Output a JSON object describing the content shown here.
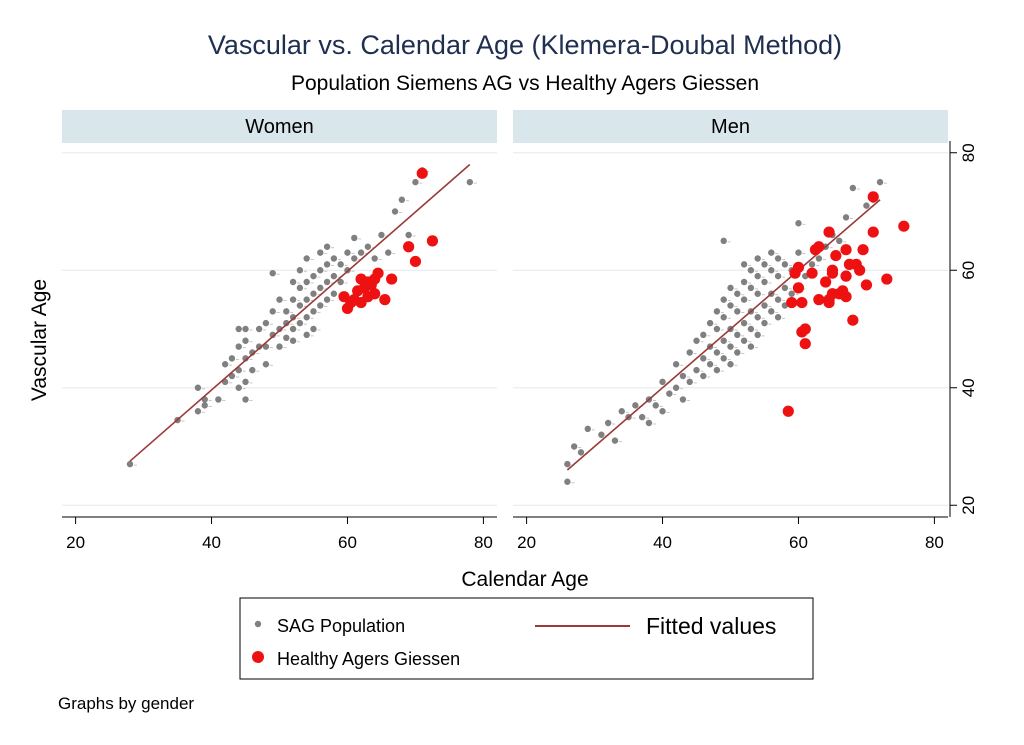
{
  "title": "Vascular vs. Calendar Age (Klemera-Doubal Method)",
  "subtitle": "Population Siemens AG vs Healthy Agers Giessen",
  "note": "Graphs by gender",
  "colors": {
    "title": "#1f2f4f",
    "strip_background": "#d9e6ec",
    "sag_points": "#808080",
    "hag_points": "#ee1111",
    "fit_line": "#9a3a38",
    "grid": "#e2eaee"
  },
  "chart_data": {
    "type": "scatter",
    "xlabel": "Calendar Age",
    "ylabel": "Vascular Age",
    "xlim": [
      18,
      82
    ],
    "ylim": [
      18,
      82
    ],
    "x_ticks": [
      20,
      40,
      60,
      80
    ],
    "y_ticks": [
      20,
      40,
      60,
      80
    ],
    "grid": true,
    "legend_position": "bottom",
    "legend": [
      {
        "label": "SAG Population",
        "kind": "sag"
      },
      {
        "label": "Fitted values",
        "kind": "fit"
      },
      {
        "label": "Healthy Agers Giessen",
        "kind": "hag"
      }
    ],
    "panels": [
      {
        "label": "Women",
        "fit_line": [
          [
            28,
            27.5
          ],
          [
            78,
            78
          ]
        ],
        "series": [
          {
            "name": "SAG Population",
            "points": [
              [
                28,
                27
              ],
              [
                35,
                34.5
              ],
              [
                38,
                36
              ],
              [
                38,
                40
              ],
              [
                39,
                37
              ],
              [
                39,
                38
              ],
              [
                41,
                38
              ],
              [
                42,
                41
              ],
              [
                42,
                44
              ],
              [
                43,
                42
              ],
              [
                43,
                45
              ],
              [
                44,
                40
              ],
              [
                44,
                43
              ],
              [
                44,
                47
              ],
              [
                44,
                50
              ],
              [
                45,
                38
              ],
              [
                45,
                41
              ],
              [
                45,
                45
              ],
              [
                45,
                48
              ],
              [
                45,
                50
              ],
              [
                46,
                43
              ],
              [
                46,
                46
              ],
              [
                47,
                47
              ],
              [
                47,
                50
              ],
              [
                48,
                44
              ],
              [
                48,
                47
              ],
              [
                48,
                51
              ],
              [
                49,
                59.5
              ],
              [
                49,
                53
              ],
              [
                49,
                49
              ],
              [
                50,
                47
              ],
              [
                50,
                50
              ],
              [
                50,
                55
              ],
              [
                51,
                48.5
              ],
              [
                51,
                51
              ],
              [
                51,
                53
              ],
              [
                52,
                48
              ],
              [
                52,
                50
              ],
              [
                52,
                52
              ],
              [
                52,
                55
              ],
              [
                52,
                58
              ],
              [
                53,
                51
              ],
              [
                53,
                54
              ],
              [
                53,
                57
              ],
              [
                53,
                60
              ],
              [
                54,
                49
              ],
              [
                54,
                52
              ],
              [
                54,
                55
              ],
              [
                54,
                58
              ],
              [
                54,
                62
              ],
              [
                55,
                50
              ],
              [
                55,
                53
              ],
              [
                55,
                56
              ],
              [
                55,
                59
              ],
              [
                56,
                54
              ],
              [
                56,
                57
              ],
              [
                56,
                60
              ],
              [
                56,
                63
              ],
              [
                57,
                55
              ],
              [
                57,
                58
              ],
              [
                57,
                61
              ],
              [
                57,
                64
              ],
              [
                58,
                56
              ],
              [
                58,
                59
              ],
              [
                58,
                62
              ],
              [
                59,
                58
              ],
              [
                59,
                61
              ],
              [
                60,
                60
              ],
              [
                60,
                63
              ],
              [
                61,
                62
              ],
              [
                61,
                65.5
              ],
              [
                62,
                63
              ],
              [
                63,
                64
              ],
              [
                64,
                62
              ],
              [
                65,
                66
              ],
              [
                66,
                63
              ],
              [
                67,
                70
              ],
              [
                68,
                72
              ],
              [
                69,
                66
              ],
              [
                70,
                75
              ],
              [
                71,
                77
              ],
              [
                78,
                75
              ]
            ]
          },
          {
            "name": "Healthy Agers Giessen",
            "points": [
              [
                59.5,
                55.5
              ],
              [
                60,
                53.5
              ],
              [
                60.5,
                54.5
              ],
              [
                61,
                55
              ],
              [
                61.5,
                56.5
              ],
              [
                62,
                54.5
              ],
              [
                62,
                58.5
              ],
              [
                62.5,
                57
              ],
              [
                63,
                55.5
              ],
              [
                63,
                58
              ],
              [
                63.5,
                57.5
              ],
              [
                64,
                56
              ],
              [
                64,
                58.5
              ],
              [
                64.5,
                59.5
              ],
              [
                65.5,
                55
              ],
              [
                66.5,
                58.5
              ],
              [
                69,
                64
              ],
              [
                70,
                61.5
              ],
              [
                71,
                76.5
              ],
              [
                72.5,
                65
              ]
            ]
          }
        ]
      },
      {
        "label": "Men",
        "fit_line": [
          [
            26,
            26
          ],
          [
            72,
            72
          ]
        ],
        "series": [
          {
            "name": "SAG Population",
            "points": [
              [
                26,
                24
              ],
              [
                26,
                27
              ],
              [
                27,
                30
              ],
              [
                28,
                29
              ],
              [
                29,
                33
              ],
              [
                31,
                32
              ],
              [
                32,
                34
              ],
              [
                33,
                31
              ],
              [
                34,
                36
              ],
              [
                35,
                35
              ],
              [
                36,
                37
              ],
              [
                37,
                35
              ],
              [
                38,
                34
              ],
              [
                38,
                38
              ],
              [
                39,
                37
              ],
              [
                40,
                36
              ],
              [
                40,
                41
              ],
              [
                41,
                39
              ],
              [
                42,
                40
              ],
              [
                42,
                44
              ],
              [
                43,
                38
              ],
              [
                43,
                42
              ],
              [
                44,
                41
              ],
              [
                44,
                46
              ],
              [
                45,
                43
              ],
              [
                45,
                48
              ],
              [
                46,
                42
              ],
              [
                46,
                45
              ],
              [
                46,
                49
              ],
              [
                47,
                44
              ],
              [
                47,
                47
              ],
              [
                47,
                51
              ],
              [
                48,
                43
              ],
              [
                48,
                46
              ],
              [
                48,
                50
              ],
              [
                48,
                53
              ],
              [
                49,
                45
              ],
              [
                49,
                48
              ],
              [
                49,
                52
              ],
              [
                49,
                55
              ],
              [
                49,
                65
              ],
              [
                50,
                44
              ],
              [
                50,
                47
              ],
              [
                50,
                50
              ],
              [
                50,
                54
              ],
              [
                50,
                57
              ],
              [
                51,
                46
              ],
              [
                51,
                49
              ],
              [
                51,
                53
              ],
              [
                51,
                56
              ],
              [
                52,
                48
              ],
              [
                52,
                51
              ],
              [
                52,
                55
              ],
              [
                52,
                58
              ],
              [
                52,
                61
              ],
              [
                53,
                47
              ],
              [
                53,
                50
              ],
              [
                53,
                53
              ],
              [
                53,
                57
              ],
              [
                53,
                60
              ],
              [
                54,
                49
              ],
              [
                54,
                52
              ],
              [
                54,
                56
              ],
              [
                54,
                59
              ],
              [
                54,
                62
              ],
              [
                55,
                51
              ],
              [
                55,
                54
              ],
              [
                55,
                58
              ],
              [
                55,
                61
              ],
              [
                56,
                53
              ],
              [
                56,
                56
              ],
              [
                56,
                60
              ],
              [
                56,
                63
              ],
              [
                57,
                52
              ],
              [
                57,
                55
              ],
              [
                57,
                59
              ],
              [
                57,
                62
              ],
              [
                58,
                54
              ],
              [
                58,
                57
              ],
              [
                58,
                61
              ],
              [
                59,
                56
              ],
              [
                59,
                60
              ],
              [
                60,
                57
              ],
              [
                60,
                63
              ],
              [
                60,
                68
              ],
              [
                61,
                59
              ],
              [
                62,
                61
              ],
              [
                63,
                62
              ],
              [
                64,
                64
              ],
              [
                65,
                66
              ],
              [
                66,
                65
              ],
              [
                67,
                69
              ],
              [
                68,
                74
              ],
              [
                70,
                71
              ],
              [
                71,
                72
              ],
              [
                72,
                75
              ]
            ]
          },
          {
            "name": "Healthy Agers Giessen",
            "points": [
              [
                58.5,
                36
              ],
              [
                59,
                54.5
              ],
              [
                59.5,
                59.5
              ],
              [
                60,
                57
              ],
              [
                60,
                60.5
              ],
              [
                60.5,
                49.5
              ],
              [
                60.5,
                54.5
              ],
              [
                61,
                47.5
              ],
              [
                61,
                50
              ],
              [
                62,
                59.5
              ],
              [
                62.5,
                63.5
              ],
              [
                63,
                55
              ],
              [
                63,
                64
              ],
              [
                64,
                58
              ],
              [
                64.5,
                55
              ],
              [
                64.5,
                66.5
              ],
              [
                64.5,
                54.5
              ],
              [
                65,
                59.5
              ],
              [
                65,
                60
              ],
              [
                65,
                56
              ],
              [
                65.5,
                62.5
              ],
              [
                66,
                56
              ],
              [
                66.5,
                56.5
              ],
              [
                67,
                63.5
              ],
              [
                67,
                55.5
              ],
              [
                67,
                59
              ],
              [
                67.5,
                61
              ],
              [
                68,
                51.5
              ],
              [
                68.5,
                61
              ],
              [
                69,
                60
              ],
              [
                69.5,
                63.5
              ],
              [
                70,
                57.5
              ],
              [
                71,
                66.5
              ],
              [
                71,
                72.5
              ],
              [
                73,
                58.5
              ],
              [
                75.5,
                67.5
              ]
            ]
          }
        ]
      }
    ]
  }
}
